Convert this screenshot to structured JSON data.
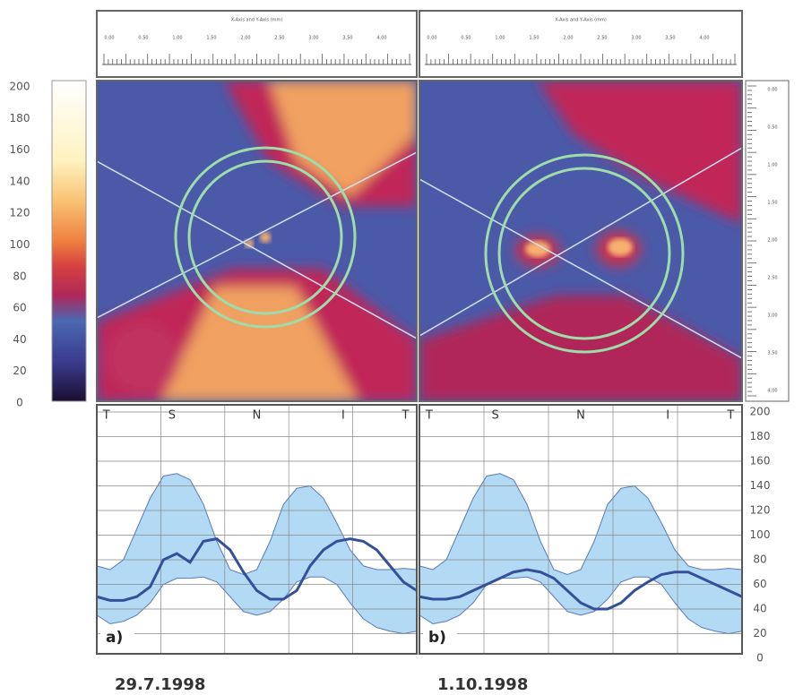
{
  "colorbar": {
    "lim": [
      0,
      200
    ],
    "ticks": [
      0,
      20,
      40,
      60,
      80,
      100,
      120,
      140,
      160,
      180,
      200
    ]
  },
  "ruler": {
    "title": "X-Axis and Y-Axis (mm)",
    "labels": [
      "0.00",
      "0.50",
      "1.00",
      "1.50",
      "2.00",
      "2.50",
      "3.00",
      "3.50",
      "4.00"
    ]
  },
  "side_ruler": {
    "labels": [
      "0.00",
      "0.50",
      "1.00",
      "1.50",
      "2.00",
      "2.50",
      "3.00",
      "3.50",
      "4.00"
    ]
  },
  "shared_yaxis": {
    "ylim": [
      0,
      200
    ],
    "yticks": [
      0,
      20,
      40,
      60,
      80,
      100,
      120,
      140,
      160,
      180,
      200
    ]
  },
  "chart_data": [
    {
      "type": "line",
      "label": "a)",
      "date": "29.7.1998",
      "sector_labels": [
        "T",
        "S",
        "N",
        "I",
        "T"
      ],
      "series": [
        {
          "color": "#34509a",
          "values": [
            50,
            47,
            47,
            50,
            58,
            80,
            85,
            78,
            95,
            97,
            88,
            70,
            55,
            48,
            48,
            55,
            75,
            88,
            95,
            97,
            95,
            88,
            75,
            62,
            55
          ]
        }
      ],
      "band": {
        "color": "#a6d3f2",
        "upper": [
          75,
          72,
          80,
          105,
          130,
          148,
          150,
          145,
          125,
          95,
          72,
          68,
          72,
          95,
          125,
          138,
          140,
          130,
          110,
          88,
          75,
          72,
          72,
          73,
          72
        ],
        "lower": [
          35,
          28,
          30,
          35,
          45,
          60,
          65,
          65,
          66,
          62,
          50,
          38,
          35,
          38,
          48,
          62,
          66,
          66,
          60,
          45,
          32,
          25,
          22,
          20,
          22
        ]
      }
    },
    {
      "type": "line",
      "label": "b)",
      "date": "1.10.1998",
      "sector_labels": [
        "T",
        "S",
        "N",
        "I",
        "T"
      ],
      "series": [
        {
          "color": "#34509a",
          "values": [
            50,
            48,
            48,
            50,
            55,
            60,
            65,
            70,
            72,
            70,
            65,
            55,
            45,
            40,
            40,
            45,
            55,
            62,
            68,
            70,
            70,
            65,
            60,
            55,
            50
          ]
        }
      ],
      "band": {
        "color": "#a6d3f2",
        "upper": [
          75,
          72,
          80,
          105,
          130,
          148,
          150,
          145,
          125,
          95,
          72,
          68,
          72,
          95,
          125,
          138,
          140,
          130,
          110,
          88,
          75,
          72,
          72,
          73,
          72
        ],
        "lower": [
          35,
          28,
          30,
          35,
          45,
          60,
          65,
          65,
          66,
          62,
          50,
          38,
          35,
          38,
          48,
          62,
          66,
          66,
          60,
          45,
          32,
          25,
          22,
          20,
          22
        ]
      }
    }
  ]
}
